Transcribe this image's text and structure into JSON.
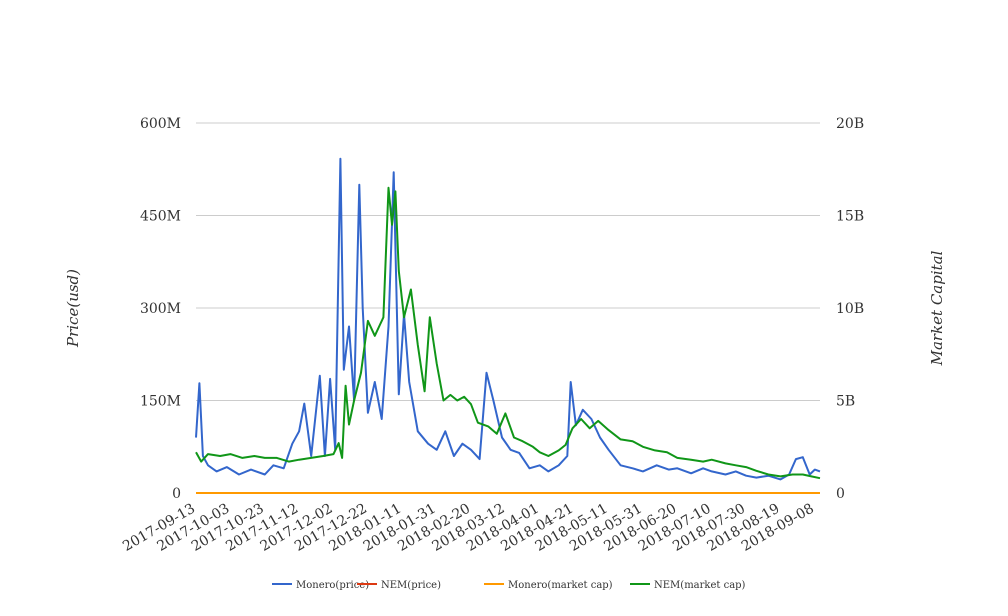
{
  "chart_data": {
    "type": "line",
    "ylabel_left": "Price(usd)",
    "ylabel_right": "Market Capital",
    "y_left_ticks": [
      "0",
      "150M",
      "300M",
      "450M",
      "600M"
    ],
    "y_left_range": [
      0,
      600000000
    ],
    "y_right_ticks": [
      "0",
      "5B",
      "10B",
      "15B",
      "20B"
    ],
    "y_right_range": [
      0,
      20000000000
    ],
    "x_ticks": [
      "2017-09-13",
      "2017-10-03",
      "2017-10-23",
      "2017-11-12",
      "2017-12-02",
      "2017-12-22",
      "2018-01-11",
      "2018-01-31",
      "2018-02-20",
      "2018-03-12",
      "2018-04-01",
      "2018-04-21",
      "2018-05-11",
      "2018-05-31",
      "2018-06-20",
      "2018-07-10",
      "2018-07-30",
      "2018-08-19",
      "2018-09-08"
    ],
    "x_range": [
      "2017-09-13",
      "2018-09-11"
    ],
    "grid": true,
    "legend_position": "bottom",
    "series": [
      {
        "name": "Monero(price)",
        "axis": "left",
        "color": "#3366cc",
        "points": [
          [
            "2017-09-13",
            90
          ],
          [
            "2017-09-15",
            178
          ],
          [
            "2017-09-17",
            60
          ],
          [
            "2017-09-20",
            45
          ],
          [
            "2017-09-25",
            35
          ],
          [
            "2017-10-01",
            42
          ],
          [
            "2017-10-08",
            30
          ],
          [
            "2017-10-15",
            38
          ],
          [
            "2017-10-23",
            30
          ],
          [
            "2017-10-28",
            45
          ],
          [
            "2017-11-03",
            40
          ],
          [
            "2017-11-08",
            80
          ],
          [
            "2017-11-12",
            100
          ],
          [
            "2017-11-15",
            145
          ],
          [
            "2017-11-19",
            60
          ],
          [
            "2017-11-24",
            190
          ],
          [
            "2017-11-27",
            60
          ],
          [
            "2017-11-30",
            185
          ],
          [
            "2017-12-03",
            70
          ],
          [
            "2017-12-06",
            542
          ],
          [
            "2017-12-08",
            200
          ],
          [
            "2017-12-11",
            270
          ],
          [
            "2017-12-14",
            150
          ],
          [
            "2017-12-17",
            500
          ],
          [
            "2017-12-19",
            300
          ],
          [
            "2017-12-22",
            130
          ],
          [
            "2017-12-26",
            180
          ],
          [
            "2017-12-30",
            120
          ],
          [
            "2018-01-03",
            270
          ],
          [
            "2018-01-06",
            520
          ],
          [
            "2018-01-09",
            160
          ],
          [
            "2018-01-12",
            290
          ],
          [
            "2018-01-15",
            180
          ],
          [
            "2018-01-20",
            100
          ],
          [
            "2018-01-26",
            80
          ],
          [
            "2018-01-31",
            70
          ],
          [
            "2018-02-05",
            100
          ],
          [
            "2018-02-10",
            60
          ],
          [
            "2018-02-15",
            80
          ],
          [
            "2018-02-20",
            70
          ],
          [
            "2018-02-25",
            55
          ],
          [
            "2018-03-01",
            195
          ],
          [
            "2018-03-05",
            150
          ],
          [
            "2018-03-10",
            90
          ],
          [
            "2018-03-15",
            70
          ],
          [
            "2018-03-20",
            65
          ],
          [
            "2018-03-26",
            40
          ],
          [
            "2018-04-01",
            45
          ],
          [
            "2018-04-06",
            35
          ],
          [
            "2018-04-12",
            45
          ],
          [
            "2018-04-17",
            60
          ],
          [
            "2018-04-19",
            180
          ],
          [
            "2018-04-22",
            110
          ],
          [
            "2018-04-26",
            135
          ],
          [
            "2018-05-01",
            120
          ],
          [
            "2018-05-06",
            90
          ],
          [
            "2018-05-11",
            70
          ],
          [
            "2018-05-18",
            45
          ],
          [
            "2018-05-25",
            40
          ],
          [
            "2018-05-31",
            35
          ],
          [
            "2018-06-08",
            45
          ],
          [
            "2018-06-15",
            38
          ],
          [
            "2018-06-20",
            40
          ],
          [
            "2018-06-28",
            32
          ],
          [
            "2018-07-05",
            40
          ],
          [
            "2018-07-10",
            35
          ],
          [
            "2018-07-18",
            30
          ],
          [
            "2018-07-24",
            35
          ],
          [
            "2018-07-30",
            28
          ],
          [
            "2018-08-05",
            25
          ],
          [
            "2018-08-12",
            28
          ],
          [
            "2018-08-19",
            22
          ],
          [
            "2018-08-24",
            30
          ],
          [
            "2018-08-28",
            55
          ],
          [
            "2018-09-01",
            58
          ],
          [
            "2018-09-05",
            30
          ],
          [
            "2018-09-08",
            38
          ],
          [
            "2018-09-11",
            35
          ]
        ],
        "y_unit": "M"
      },
      {
        "name": "NEM(price)",
        "axis": "left",
        "color": "#dc3912",
        "points": [
          [
            "2017-09-13",
            0
          ],
          [
            "2018-09-11",
            0
          ]
        ],
        "y_unit": "M"
      },
      {
        "name": "Monero(market cap)",
        "axis": "right",
        "color": "#ff9900",
        "points": [
          [
            "2017-09-13",
            0
          ],
          [
            "2018-09-11",
            0
          ]
        ],
        "y_unit": "B"
      },
      {
        "name": "NEM(market cap)",
        "axis": "right",
        "color": "#109618",
        "points": [
          [
            "2017-09-13",
            2.2
          ],
          [
            "2017-09-16",
            1.7
          ],
          [
            "2017-09-20",
            2.1
          ],
          [
            "2017-09-27",
            2.0
          ],
          [
            "2017-10-03",
            2.1
          ],
          [
            "2017-10-10",
            1.9
          ],
          [
            "2017-10-17",
            2.0
          ],
          [
            "2017-10-23",
            1.9
          ],
          [
            "2017-10-30",
            1.9
          ],
          [
            "2017-11-06",
            1.7
          ],
          [
            "2017-11-12",
            1.8
          ],
          [
            "2017-11-19",
            1.9
          ],
          [
            "2017-11-26",
            2.0
          ],
          [
            "2017-12-02",
            2.1
          ],
          [
            "2017-12-05",
            2.7
          ],
          [
            "2017-12-07",
            1.9
          ],
          [
            "2017-12-09",
            5.8
          ],
          [
            "2017-12-11",
            3.7
          ],
          [
            "2017-12-14",
            5.0
          ],
          [
            "2017-12-18",
            6.5
          ],
          [
            "2017-12-22",
            9.3
          ],
          [
            "2017-12-26",
            8.5
          ],
          [
            "2017-12-31",
            9.5
          ],
          [
            "2018-01-03",
            16.5
          ],
          [
            "2018-01-05",
            14.5
          ],
          [
            "2018-01-07",
            16.3
          ],
          [
            "2018-01-09",
            12.0
          ],
          [
            "2018-01-12",
            9.5
          ],
          [
            "2018-01-16",
            11.0
          ],
          [
            "2018-01-20",
            8.0
          ],
          [
            "2018-01-24",
            5.5
          ],
          [
            "2018-01-27",
            9.5
          ],
          [
            "2018-01-31",
            7.0
          ],
          [
            "2018-02-04",
            5.0
          ],
          [
            "2018-02-08",
            5.3
          ],
          [
            "2018-02-12",
            5.0
          ],
          [
            "2018-02-16",
            5.2
          ],
          [
            "2018-02-20",
            4.8
          ],
          [
            "2018-02-24",
            3.8
          ],
          [
            "2018-03-02",
            3.6
          ],
          [
            "2018-03-07",
            3.2
          ],
          [
            "2018-03-12",
            4.3
          ],
          [
            "2018-03-17",
            3.0
          ],
          [
            "2018-03-22",
            2.8
          ],
          [
            "2018-03-28",
            2.5
          ],
          [
            "2018-04-01",
            2.2
          ],
          [
            "2018-04-06",
            2.0
          ],
          [
            "2018-04-12",
            2.3
          ],
          [
            "2018-04-16",
            2.6
          ],
          [
            "2018-04-20",
            3.5
          ],
          [
            "2018-04-25",
            4.0
          ],
          [
            "2018-04-30",
            3.5
          ],
          [
            "2018-05-05",
            3.9
          ],
          [
            "2018-05-11",
            3.4
          ],
          [
            "2018-05-18",
            2.9
          ],
          [
            "2018-05-25",
            2.8
          ],
          [
            "2018-05-31",
            2.5
          ],
          [
            "2018-06-07",
            2.3
          ],
          [
            "2018-06-14",
            2.2
          ],
          [
            "2018-06-20",
            1.9
          ],
          [
            "2018-06-28",
            1.8
          ],
          [
            "2018-07-05",
            1.7
          ],
          [
            "2018-07-10",
            1.8
          ],
          [
            "2018-07-18",
            1.6
          ],
          [
            "2018-07-24",
            1.5
          ],
          [
            "2018-07-30",
            1.4
          ],
          [
            "2018-08-05",
            1.2
          ],
          [
            "2018-08-12",
            1.0
          ],
          [
            "2018-08-19",
            0.9
          ],
          [
            "2018-08-26",
            1.0
          ],
          [
            "2018-09-01",
            1.0
          ],
          [
            "2018-09-06",
            0.9
          ],
          [
            "2018-09-11",
            0.8
          ]
        ],
        "y_unit": "B"
      }
    ]
  }
}
